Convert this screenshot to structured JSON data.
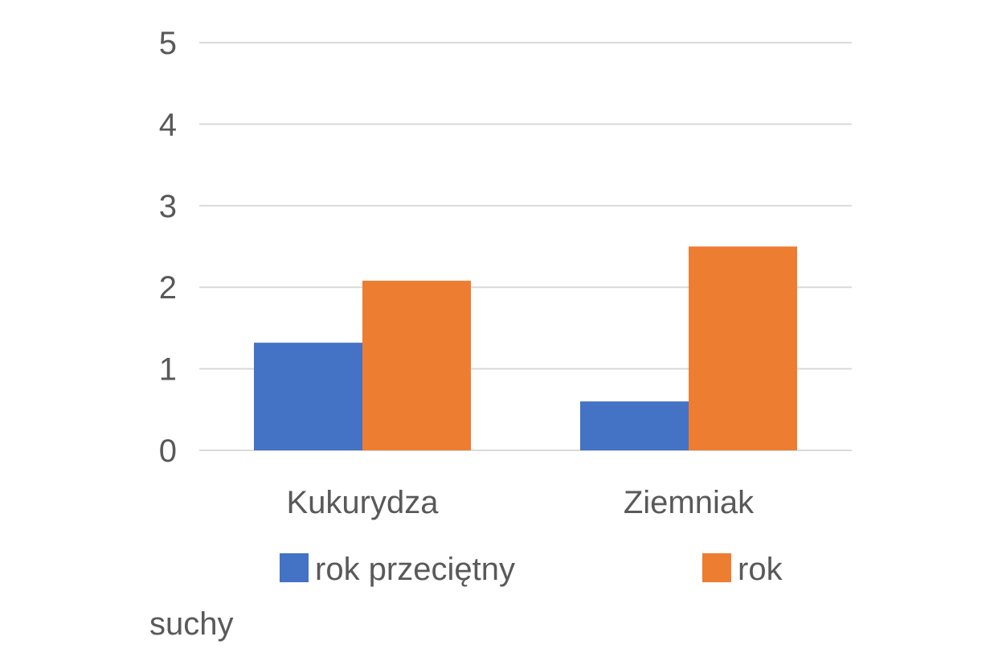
{
  "chart_data": {
    "type": "bar",
    "categories": [
      "Kukurydza",
      "Ziemniak"
    ],
    "series": [
      {
        "name": "rok przeciętny",
        "values": [
          1.32,
          0.6
        ],
        "color": "#4472C4"
      },
      {
        "name": "rok suchy",
        "values": [
          2.08,
          2.5
        ],
        "color": "#ED7D31"
      }
    ],
    "title": "",
    "xlabel": "",
    "ylabel": "",
    "ylim": [
      0,
      5
    ],
    "yticks": [
      "0",
      "1",
      "2",
      "3",
      "4",
      "5"
    ],
    "grid": true,
    "legend_position": "bottom",
    "legend_labels": {
      "series0": "rok przeciętny",
      "series1_line1": "rok",
      "series1_line2": "suchy"
    }
  }
}
